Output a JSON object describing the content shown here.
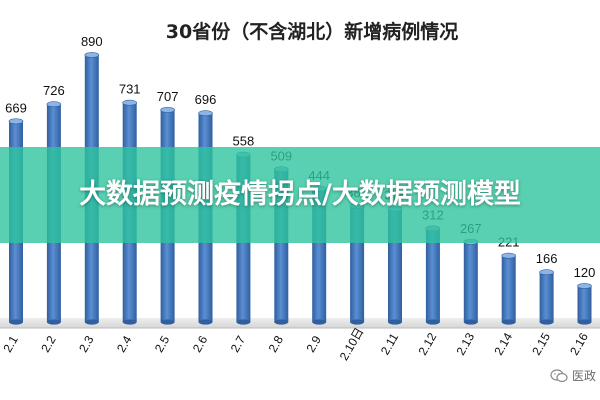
{
  "chart_data": {
    "type": "bar",
    "title": "30省份（不含湖北）新增病例情况",
    "categories": [
      "2.1",
      "2.2",
      "2.3",
      "2.4",
      "2.5",
      "2.6",
      "2.7",
      "2.8",
      "2.9",
      "2.10日",
      "2.11",
      "2.12",
      "2.13",
      "2.14",
      "2.15",
      "2.16"
    ],
    "values": [
      669,
      726,
      890,
      731,
      707,
      696,
      558,
      509,
      444,
      387,
      378,
      312,
      267,
      221,
      166,
      120
    ],
    "data_labels": [
      "669",
      "726",
      "890",
      "731",
      "707",
      "696",
      "558",
      "509",
      "444",
      "387",
      "378",
      "312",
      "267",
      "221",
      "166",
      "120"
    ],
    "ylim": [
      0,
      1000
    ],
    "grid": false,
    "legend": "none",
    "colors": {
      "bar": "#4a7ec4",
      "bar_dark": "#2f5f9f",
      "bar_light": "#8db4e6"
    }
  },
  "overlay": {
    "banner_text": "大数据预测疫情拐点/大数据预测模型",
    "banner_color": "#2ec49e"
  },
  "watermark": {
    "text": "医政",
    "icon": "wechat-icon"
  }
}
